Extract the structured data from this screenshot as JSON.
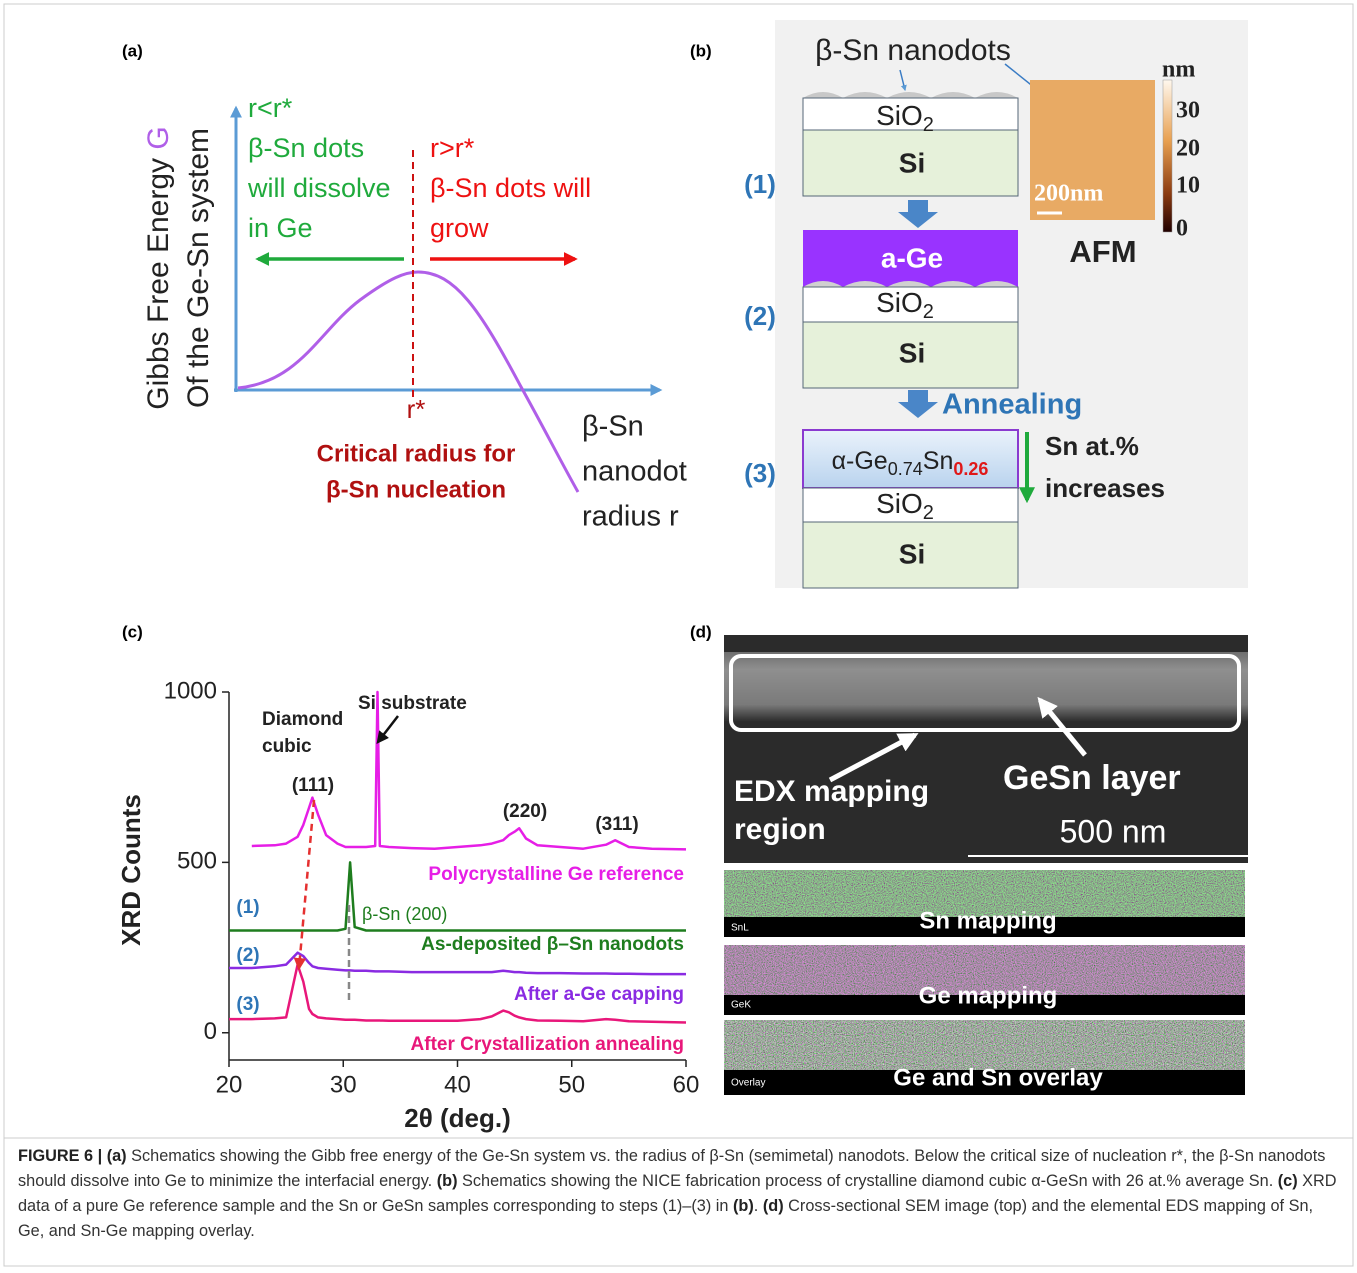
{
  "panel_a": {
    "label": "(a)",
    "y_axis_label": "Gibbs Free Energy",
    "y_axis_symbol": "G",
    "y_axis_label_2": "Of the Ge-Sn system",
    "left_note": [
      "r<r*",
      "β-Sn dots",
      "will dissolve",
      "in Ge"
    ],
    "right_note": [
      "r>r*",
      "β-Sn dots will",
      "grow"
    ],
    "r_star": "r*",
    "critical": [
      "Critical radius for",
      "β-Sn nucleation"
    ],
    "x_axis_label": [
      "β-Sn",
      "nanodot",
      "radius r"
    ]
  },
  "panel_b": {
    "label": "(b)",
    "top_label": "β-Sn nanodots",
    "steps": [
      "(1)",
      "(2)",
      "(3)"
    ],
    "si": "Si",
    "sio": "SiO",
    "sub2": "2",
    "age": "a-Ge",
    "alpha_ge": "α-Ge",
    "ge_frac": "0.74",
    "sn": "Sn",
    "sn_frac": "0.26",
    "annealing": "Annealing",
    "sn_note": [
      "Sn at.%",
      "increases"
    ],
    "afm": "AFM",
    "scale_bar": "200nm",
    "colorbar_unit": "nm",
    "colorbar_ticks": [
      "30",
      "20",
      "10",
      "0"
    ]
  },
  "chart_data": {
    "type": "line",
    "label": "(c)",
    "x_label": "2θ (deg.)",
    "y_label": "XRD Counts",
    "xlim": [
      20,
      60
    ],
    "xticks": [
      20,
      30,
      40,
      50,
      60
    ],
    "ylim": [
      -80,
      1000
    ],
    "yticks": [
      0,
      500,
      1000
    ],
    "x": [
      20,
      22,
      24,
      25,
      26,
      26.5,
      27,
      27.3,
      27.8,
      28.5,
      29.5,
      30.2,
      30.6,
      31,
      32,
      32.8,
      33,
      33.2,
      34,
      36,
      38,
      40,
      42,
      43,
      44,
      44.5,
      45,
      45.4,
      46,
      47,
      49,
      51,
      53,
      53.8,
      55,
      57,
      60
    ],
    "series": [
      {
        "name": "Polycrystalline Ge reference",
        "color": "#e61ee6",
        "values": [
          null,
          548,
          550,
          555,
          575,
          610,
          660,
          690,
          640,
          580,
          555,
          545,
          545,
          545,
          545,
          548,
          1000,
          548,
          545,
          542,
          540,
          545,
          550,
          555,
          565,
          580,
          590,
          600,
          570,
          550,
          545,
          540,
          552,
          565,
          545,
          540,
          538
        ]
      },
      {
        "name": "As-deposited β–Sn nanodots",
        "color": "#1e7d1e",
        "values": [
          300,
          300,
          300,
          300,
          300,
          300,
          300,
          300,
          300,
          300,
          300,
          305,
          500,
          310,
          300,
          300,
          300,
          300,
          300,
          300,
          300,
          300,
          300,
          300,
          300,
          300,
          300,
          300,
          300,
          300,
          300,
          300,
          300,
          300,
          300,
          300,
          300
        ]
      },
      {
        "name": "After a-Ge capping",
        "color": "#8a2be2",
        "values": [
          190,
          190,
          195,
          200,
          235,
          225,
          205,
          195,
          190,
          188,
          185,
          183,
          183,
          182,
          182,
          180,
          180,
          180,
          180,
          178,
          178,
          178,
          178,
          178,
          182,
          180,
          178,
          178,
          176,
          175,
          175,
          174,
          174,
          173,
          173,
          172,
          172
        ]
      },
      {
        "name": "After Crystallization annealing",
        "color": "#e8177a",
        "values": [
          40,
          40,
          42,
          45,
          200,
          150,
          70,
          55,
          45,
          42,
          40,
          38,
          38,
          38,
          36,
          36,
          36,
          36,
          35,
          35,
          35,
          35,
          40,
          48,
          65,
          60,
          50,
          45,
          40,
          36,
          35,
          34,
          40,
          38,
          34,
          32,
          30
        ]
      }
    ],
    "annotations": {
      "diamond_cubic": [
        "Diamond",
        "cubic"
      ],
      "si_substrate": "Si substrate",
      "peaks": [
        "(111)",
        "(220)",
        "(311)"
      ],
      "beta_sn": "β-Sn (200)",
      "steps": [
        "(1)",
        "(2)",
        "(3)"
      ]
    }
  },
  "panel_d": {
    "label": "(d)",
    "edx": [
      "EDX mapping",
      "region"
    ],
    "layer": "GeSn layer",
    "scale_bar": "500 nm",
    "maps": [
      {
        "tag": "SnL",
        "title": "Sn mapping"
      },
      {
        "tag": "GeK",
        "title": "Ge mapping"
      },
      {
        "tag": "Overlay",
        "title": "Ge and Sn overlay"
      }
    ]
  },
  "caption": [
    {
      "text": "FIGURE 6 | ",
      "bold": true
    },
    {
      "text": "(a)",
      "bold": true
    },
    {
      "text": " Schematics showing the Gibb free energy of the Ge-Sn system vs. the radius of β-Sn (semimetal) nanodots. Below the critical size of nucleation r*, the β-Sn nanodots should dissolve into Ge to minimize the interfacial energy. ",
      "bold": false
    },
    {
      "text": "(b)",
      "bold": true
    },
    {
      "text": " Schematics showing the NICE fabrication process of crystalline diamond cubic α-GeSn with 26 at.% average Sn. ",
      "bold": false
    },
    {
      "text": "(c)",
      "bold": true
    },
    {
      "text": " XRD data of a pure Ge reference sample and the Sn or GeSn samples corresponding to steps (1)–(3) in ",
      "bold": false
    },
    {
      "text": "(b)",
      "bold": true
    },
    {
      "text": ". ",
      "bold": false
    },
    {
      "text": "(d)",
      "bold": true
    },
    {
      "text": " Cross-sectional SEM image (top) and the elemental EDS mapping of Sn, Ge, and Sn-Ge mapping overlay.",
      "bold": false
    }
  ]
}
